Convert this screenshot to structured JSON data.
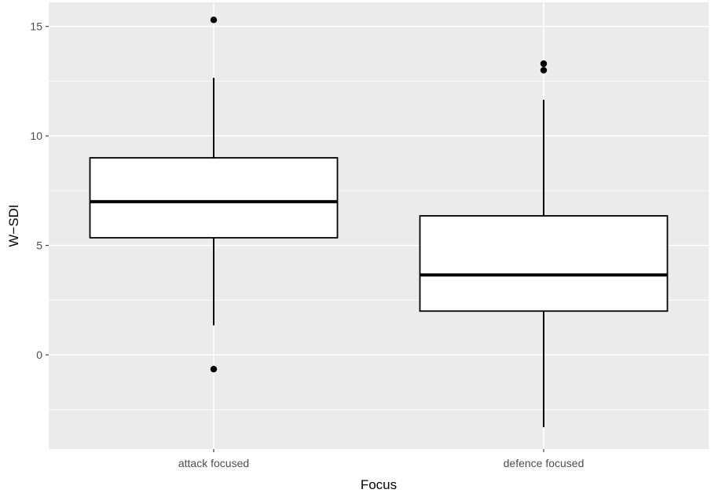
{
  "chart_data": {
    "type": "boxplot",
    "xlabel": "Focus",
    "ylabel": "W−SDI",
    "categories": [
      "attack focused",
      "defence focused"
    ],
    "ylim": [
      -4.3,
      16.1
    ],
    "yticks": [
      0,
      5,
      10,
      15
    ],
    "grid": true,
    "boxes": [
      {
        "category": "attack focused",
        "lower_whisker": 1.35,
        "q1": 5.35,
        "median": 7.0,
        "q3": 9.0,
        "upper_whisker": 12.65,
        "outliers": [
          15.3,
          -0.65
        ]
      },
      {
        "category": "defence focused",
        "lower_whisker": -3.3,
        "q1": 2.0,
        "median": 3.65,
        "q3": 6.35,
        "upper_whisker": 11.65,
        "outliers": [
          13.3,
          13.0
        ]
      }
    ],
    "colors": {
      "panel": "#ebebeb",
      "grid": "#ffffff",
      "box_fill": "#ffffff",
      "line": "#000000",
      "tick_label": "#4d4d4d"
    }
  }
}
